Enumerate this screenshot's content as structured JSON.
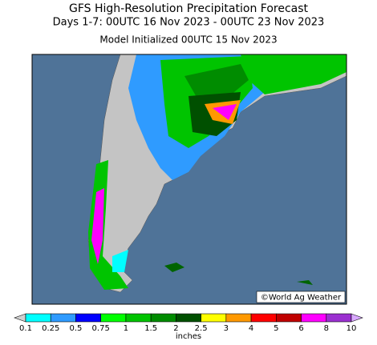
{
  "header": {
    "title": "GFS High-Resolution Precipitation Forecast",
    "subtitle": "Days 1-7: 00UTC 16 Nov 2023 - 00UTC 23 Nov 2023",
    "note": "Model Initialized 00UTC 15 Nov 2023"
  },
  "map": {
    "credit": "©World Ag Weather"
  },
  "legend": {
    "unit": "inches",
    "ticks": [
      0.1,
      0.25,
      0.5,
      0.75,
      1,
      1.5,
      2,
      2.5,
      3,
      4,
      5,
      6,
      8,
      10
    ],
    "colors": [
      "#d0d0d0",
      "#00ffff",
      "#2f9bff",
      "#0000ff",
      "#00ff00",
      "#00c400",
      "#008c00",
      "#005000",
      "#ffff00",
      "#ff9900",
      "#ff0000",
      "#c00000",
      "#ff00ff",
      "#9b30d0",
      "#d8a8ff"
    ]
  }
}
